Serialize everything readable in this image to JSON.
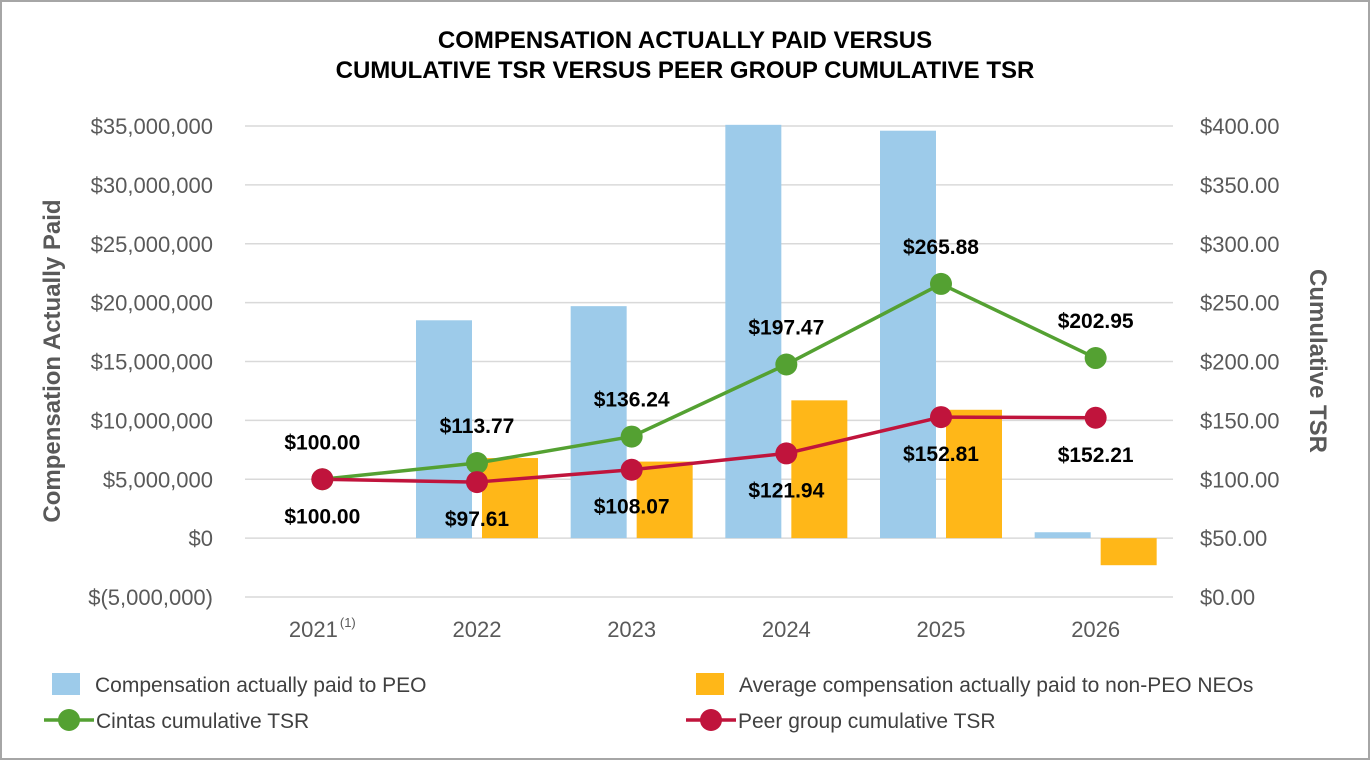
{
  "chart_data": {
    "type": "bar",
    "title_lines": [
      "COMPENSATION ACTUALLY PAID VERSUS",
      "CUMULATIVE TSR VERSUS PEER GROUP CUMULATIVE TSR"
    ],
    "categories": [
      {
        "label": "2021",
        "superscript": "(1)"
      },
      {
        "label": "2022",
        "superscript": ""
      },
      {
        "label": "2023",
        "superscript": ""
      },
      {
        "label": "2024",
        "superscript": ""
      },
      {
        "label": "2025",
        "superscript": ""
      },
      {
        "label": "2026",
        "superscript": ""
      }
    ],
    "y_left": {
      "label": "Compensation Actually Paid",
      "min": -5000000,
      "max": 35000000,
      "ticks": [
        -5000000,
        0,
        5000000,
        10000000,
        15000000,
        20000000,
        25000000,
        30000000,
        35000000
      ],
      "tick_labels": [
        "$(5,000,000)",
        "$0",
        "$5,000,000",
        "$10,000,000",
        "$15,000,000",
        "$20,000,000",
        "$25,000,000",
        "$30,000,000",
        "$35,000,000"
      ]
    },
    "y_right": {
      "label": "Cumulative TSR",
      "min": 0,
      "max": 400,
      "ticks": [
        0,
        50,
        100,
        150,
        200,
        250,
        300,
        350,
        400
      ],
      "tick_labels": [
        "$0.00",
        "$50.00",
        "$100.00",
        "$150.00",
        "$200.00",
        "$250.00",
        "$300.00",
        "$350.00",
        "$400.00"
      ]
    },
    "grid": true,
    "legend_position": "bottom",
    "bar_series": [
      {
        "name": "Compensation actually paid to PEO",
        "color": "#9dcbea",
        "axis": "left",
        "values": [
          null,
          18500000,
          19700000,
          35100000,
          34600000,
          500000
        ]
      },
      {
        "name": "Average compensation actually paid to non-PEO NEOs",
        "color": "#ffb718",
        "axis": "left",
        "values": [
          null,
          6800000,
          6500000,
          11700000,
          10900000,
          -2300000
        ]
      }
    ],
    "line_series": [
      {
        "name": "Cintas cumulative TSR",
        "color": "#54a132",
        "axis": "right",
        "values": [
          100.0,
          113.77,
          136.24,
          197.47,
          265.88,
          202.95
        ],
        "labels": [
          "$100.00",
          "$113.77",
          "$136.24",
          "$197.47",
          "$265.88",
          "$202.95"
        ],
        "label_position": "above"
      },
      {
        "name": "Peer group cumulative TSR",
        "color": "#c0143c",
        "axis": "right",
        "values": [
          100.0,
          97.61,
          108.07,
          121.94,
          152.81,
          152.21
        ],
        "labels": [
          "$100.00",
          "$97.61",
          "$108.07",
          "$121.94",
          "$152.81",
          "$152.21"
        ],
        "label_position": "below"
      }
    ]
  }
}
